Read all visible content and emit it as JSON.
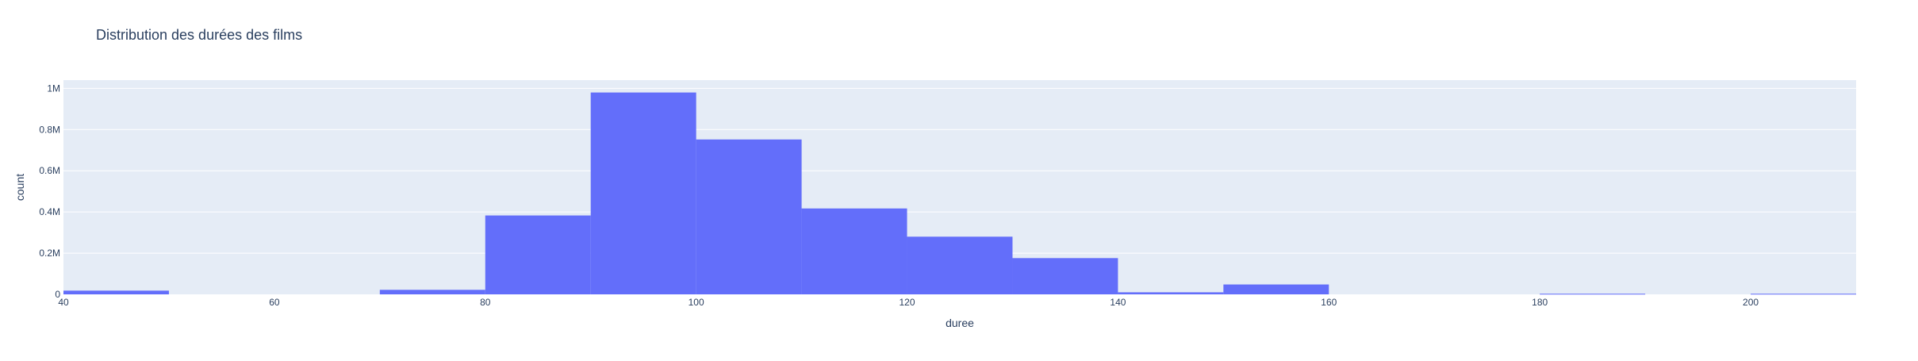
{
  "chart_data": {
    "type": "bar",
    "title": "Distribution des durées des films",
    "xlabel": "duree",
    "ylabel": "count",
    "bin_width": 10,
    "xlim": [
      40,
      210
    ],
    "ylim": [
      0,
      1040000
    ],
    "x_ticks": [
      40,
      60,
      80,
      100,
      120,
      140,
      160,
      180,
      200
    ],
    "y_ticks": [
      0,
      200000,
      400000,
      600000,
      800000,
      1000000
    ],
    "y_tick_labels": [
      "0",
      "0.2M",
      "0.4M",
      "0.6M",
      "0.8M",
      "1M"
    ],
    "bins": [
      {
        "x0": 40,
        "x1": 50,
        "count": 18000
      },
      {
        "x0": 50,
        "x1": 60,
        "count": 0
      },
      {
        "x0": 60,
        "x1": 70,
        "count": 0
      },
      {
        "x0": 70,
        "x1": 80,
        "count": 22000
      },
      {
        "x0": 80,
        "x1": 90,
        "count": 383000
      },
      {
        "x0": 90,
        "x1": 100,
        "count": 980000
      },
      {
        "x0": 100,
        "x1": 110,
        "count": 752000
      },
      {
        "x0": 110,
        "x1": 120,
        "count": 417000
      },
      {
        "x0": 120,
        "x1": 130,
        "count": 280000
      },
      {
        "x0": 130,
        "x1": 140,
        "count": 176000
      },
      {
        "x0": 140,
        "x1": 150,
        "count": 10000
      },
      {
        "x0": 150,
        "x1": 160,
        "count": 48000
      },
      {
        "x0": 160,
        "x1": 170,
        "count": 0
      },
      {
        "x0": 170,
        "x1": 180,
        "count": 0
      },
      {
        "x0": 180,
        "x1": 190,
        "count": 3000
      },
      {
        "x0": 190,
        "x1": 200,
        "count": 0
      },
      {
        "x0": 200,
        "x1": 210,
        "count": 3000
      }
    ],
    "grid": true,
    "colors": {
      "bar": "#636efa",
      "plot_background": "#e5ecf6",
      "gridline": "#ffffff",
      "text": "#2a3f5f"
    }
  }
}
